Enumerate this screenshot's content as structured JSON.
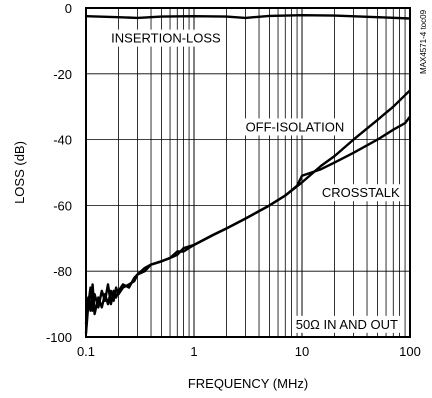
{
  "chart_data": {
    "type": "line",
    "title": "",
    "xlabel": "FREQUENCY (MHz)",
    "ylabel": "LOSS (dB)",
    "x_scale": "log",
    "xlim": [
      0.1,
      100
    ],
    "ylim": [
      -100,
      0
    ],
    "x_ticks": [
      0.1,
      1,
      10,
      100
    ],
    "x_tick_labels": [
      "0.1",
      "1",
      "10",
      "100"
    ],
    "y_ticks": [
      0,
      -20,
      -40,
      -60,
      -80,
      -100
    ],
    "y_tick_labels": [
      "0",
      "-20",
      "-40",
      "-60",
      "-80",
      "-100"
    ],
    "grid": true,
    "line_color": "#000000",
    "series": [
      {
        "name": "INSERTION-LOSS",
        "x": [
          0.1,
          0.2,
          0.3,
          0.5,
          1,
          2,
          3,
          5,
          10,
          20,
          50,
          100
        ],
        "y": [
          -2.5,
          -2.8,
          -3.0,
          -2.6,
          -2.5,
          -2.6,
          -3.0,
          -2.4,
          -2.2,
          -2.3,
          -2.8,
          -3.2
        ]
      },
      {
        "name": "OFF-ISOLATION",
        "x": [
          0.1,
          0.105,
          0.11,
          0.115,
          0.12,
          0.13,
          0.14,
          0.15,
          0.16,
          0.17,
          0.18,
          0.19,
          0.2,
          0.22,
          0.25,
          0.28,
          0.3,
          0.35,
          0.4,
          0.5,
          0.6,
          0.7,
          0.8,
          1,
          1.5,
          2,
          3,
          5,
          7,
          10,
          15,
          20,
          30,
          50,
          70,
          100
        ],
        "y": [
          -99,
          -90,
          -85,
          -92,
          -87,
          -91,
          -86,
          -89,
          -84,
          -90,
          -86,
          -88,
          -86,
          -84,
          -85,
          -82,
          -81,
          -79,
          -78,
          -77,
          -76,
          -75,
          -73,
          -72,
          -69,
          -67,
          -64,
          -60,
          -57,
          -53,
          -48,
          -45,
          -40,
          -34,
          -30,
          -25
        ]
      },
      {
        "name": "CROSSTALK",
        "x": [
          0.1,
          0.105,
          0.11,
          0.115,
          0.12,
          0.13,
          0.14,
          0.15,
          0.16,
          0.17,
          0.18,
          0.19,
          0.2,
          0.22,
          0.25,
          0.28,
          0.3,
          0.35,
          0.4,
          0.5,
          0.6,
          0.7,
          0.8,
          1,
          1.5,
          2,
          3,
          5,
          7,
          9,
          10,
          15,
          20,
          30,
          50,
          70,
          90,
          100
        ],
        "y": [
          -96,
          -88,
          -92,
          -84,
          -93,
          -88,
          -91,
          -87,
          -90,
          -86,
          -89,
          -85,
          -87,
          -85,
          -84,
          -83,
          -81,
          -80,
          -78,
          -77,
          -76,
          -74,
          -74,
          -72,
          -69,
          -67,
          -64,
          -60,
          -57,
          -54,
          -51,
          -49,
          -47,
          -44,
          -40,
          -37,
          -35,
          -33
        ]
      }
    ],
    "annotations": [
      {
        "text": "INSERTION-LOSS",
        "x": 0.55,
        "y": -9
      },
      {
        "text": "OFF-ISOLATION",
        "x": 8.6,
        "y": -36
      },
      {
        "text": "CROSSTALK",
        "x": 35,
        "y": -56
      },
      {
        "text": "50Ω IN AND OUT",
        "x": 26,
        "y": -96
      }
    ],
    "side_label": "MAX4571-4 toc09"
  }
}
